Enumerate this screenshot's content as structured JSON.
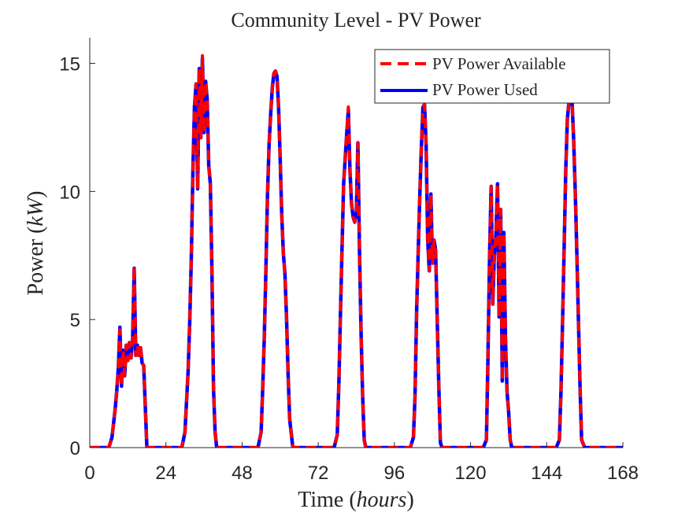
{
  "chart_data": {
    "type": "line",
    "title": "Community Level - PV Power",
    "xlabel_text": "Time ",
    "xlabel_unit": "hours",
    "ylabel_text": "Power ",
    "ylabel_unit": "kW",
    "xlim": [
      0,
      168
    ],
    "ylim": [
      0,
      16
    ],
    "xticks": [
      0,
      24,
      48,
      72,
      96,
      120,
      144,
      168
    ],
    "yticks": [
      0,
      5,
      10,
      15
    ],
    "grid": false,
    "legend_position": "top-right",
    "series": [
      {
        "name": "PV Power Available",
        "color": "#ff0000",
        "style": "dashed",
        "points": [
          [
            0,
            0
          ],
          [
            6,
            0
          ],
          [
            7,
            0.4
          ],
          [
            8,
            1.5
          ],
          [
            8.5,
            2.2
          ],
          [
            9,
            3.1
          ],
          [
            9.5,
            4.6
          ],
          [
            10,
            2.4
          ],
          [
            10.5,
            3.8
          ],
          [
            11,
            2.8
          ],
          [
            11.5,
            4.0
          ],
          [
            12,
            3.4
          ],
          [
            12.5,
            4.1
          ],
          [
            13,
            3.5
          ],
          [
            13.5,
            4.2
          ],
          [
            14,
            7.1
          ],
          [
            14.5,
            3.6
          ],
          [
            15,
            4.0
          ],
          [
            15.5,
            3.6
          ],
          [
            16,
            3.9
          ],
          [
            16.5,
            3.3
          ],
          [
            17,
            3.2
          ],
          [
            18,
            0
          ],
          [
            29,
            0
          ],
          [
            30,
            0.6
          ],
          [
            30.5,
            1.8
          ],
          [
            31,
            3.0
          ],
          [
            31.5,
            4.9
          ],
          [
            32,
            7.4
          ],
          [
            32.5,
            10.8
          ],
          [
            33,
            13.3
          ],
          [
            33.5,
            14.2
          ],
          [
            34,
            10.1
          ],
          [
            34.5,
            14.8
          ],
          [
            35,
            12.1
          ],
          [
            35.5,
            15.3
          ],
          [
            36,
            12.3
          ],
          [
            36.5,
            14.3
          ],
          [
            37,
            13.6
          ],
          [
            37.5,
            11.0
          ],
          [
            38,
            10.3
          ],
          [
            38.5,
            6.9
          ],
          [
            39,
            2.3
          ],
          [
            39.5,
            0.6
          ],
          [
            40,
            0
          ],
          [
            53,
            0
          ],
          [
            54,
            0.6
          ],
          [
            54.5,
            2.3
          ],
          [
            55,
            4.3
          ],
          [
            55.5,
            6.9
          ],
          [
            56,
            9.8
          ],
          [
            56.5,
            11.8
          ],
          [
            57,
            13.0
          ],
          [
            57.5,
            14.0
          ],
          [
            58,
            14.6
          ],
          [
            58.5,
            14.7
          ],
          [
            59,
            14.5
          ],
          [
            59.5,
            13.3
          ],
          [
            60,
            11.3
          ],
          [
            60.5,
            9.1
          ],
          [
            61,
            7.6
          ],
          [
            61.5,
            6.8
          ],
          [
            62,
            5.1
          ],
          [
            62.5,
            2.9
          ],
          [
            63,
            1.1
          ],
          [
            64,
            0
          ],
          [
            77,
            0
          ],
          [
            78,
            0.5
          ],
          [
            78.5,
            2.5
          ],
          [
            79,
            5.2
          ],
          [
            79.5,
            7.8
          ],
          [
            80,
            10.3
          ],
          [
            80.5,
            11.3
          ],
          [
            81,
            12.3
          ],
          [
            81.5,
            13.3
          ],
          [
            82,
            10.8
          ],
          [
            82.5,
            9.5
          ],
          [
            83,
            9.0
          ],
          [
            83.5,
            8.8
          ],
          [
            84,
            9.2
          ],
          [
            84.5,
            11.9
          ],
          [
            85,
            7.7
          ],
          [
            85.5,
            4.5
          ],
          [
            86,
            2.0
          ],
          [
            86.5,
            0.3
          ],
          [
            87,
            0
          ],
          [
            101,
            0
          ],
          [
            102,
            0.4
          ],
          [
            102.5,
            2.0
          ],
          [
            103,
            5.3
          ],
          [
            103.5,
            7.6
          ],
          [
            104,
            9.8
          ],
          [
            104.5,
            11.7
          ],
          [
            105,
            13.3
          ],
          [
            105.5,
            13.4
          ],
          [
            106,
            11.8
          ],
          [
            106.5,
            8.1
          ],
          [
            107,
            6.9
          ],
          [
            107.5,
            9.9
          ],
          [
            108,
            7.2
          ],
          [
            108.5,
            8.1
          ],
          [
            109,
            7.7
          ],
          [
            109.5,
            5.0
          ],
          [
            110,
            2.4
          ],
          [
            110.5,
            0.2
          ],
          [
            111,
            0
          ],
          [
            124,
            0
          ],
          [
            125,
            0.3
          ],
          [
            125.5,
            3.6
          ],
          [
            126,
            7.5
          ],
          [
            126.5,
            10.2
          ],
          [
            127,
            5.6
          ],
          [
            127.5,
            7.5
          ],
          [
            128,
            8.3
          ],
          [
            128.5,
            10.3
          ],
          [
            129,
            5.1
          ],
          [
            129.5,
            9.3
          ],
          [
            130,
            2.6
          ],
          [
            130.5,
            8.4
          ],
          [
            131,
            4.3
          ],
          [
            131.5,
            2.2
          ],
          [
            132,
            1.4
          ],
          [
            132.5,
            0.3
          ],
          [
            133,
            0
          ],
          [
            147,
            0
          ],
          [
            148,
            0.3
          ],
          [
            148.5,
            2.2
          ],
          [
            149,
            4.9
          ],
          [
            149.5,
            7.8
          ],
          [
            150,
            10.8
          ],
          [
            150.5,
            12.8
          ],
          [
            151,
            13.5
          ],
          [
            152,
            13.5
          ],
          [
            152.5,
            12.0
          ],
          [
            153,
            10.0
          ],
          [
            153.5,
            7.6
          ],
          [
            154,
            5.0
          ],
          [
            154.5,
            2.4
          ],
          [
            155,
            0.3
          ],
          [
            156,
            0
          ],
          [
            168,
            0
          ]
        ]
      },
      {
        "name": "PV Power Used",
        "color": "#0000ff",
        "style": "solid",
        "points": [
          [
            0,
            0
          ],
          [
            6,
            0
          ],
          [
            7,
            0.4
          ],
          [
            8,
            1.5
          ],
          [
            8.5,
            2.2
          ],
          [
            9,
            3.1
          ],
          [
            9.5,
            4.7
          ],
          [
            10,
            2.4
          ],
          [
            10.5,
            3.8
          ],
          [
            11,
            2.8
          ],
          [
            11.5,
            4.0
          ],
          [
            12,
            3.4
          ],
          [
            12.5,
            4.1
          ],
          [
            13,
            3.5
          ],
          [
            13.5,
            4.2
          ],
          [
            14,
            7.0
          ],
          [
            14.5,
            3.6
          ],
          [
            15,
            4.0
          ],
          [
            15.5,
            3.6
          ],
          [
            16,
            3.9
          ],
          [
            16.5,
            3.3
          ],
          [
            17,
            3.2
          ],
          [
            18,
            0
          ],
          [
            29,
            0
          ],
          [
            30,
            0.6
          ],
          [
            30.5,
            1.8
          ],
          [
            31,
            3.0
          ],
          [
            31.5,
            4.9
          ],
          [
            32,
            7.4
          ],
          [
            32.5,
            10.8
          ],
          [
            33,
            13.3
          ],
          [
            33.5,
            14.2
          ],
          [
            34,
            10.1
          ],
          [
            34.5,
            14.8
          ],
          [
            35,
            12.1
          ],
          [
            35.5,
            15.2
          ],
          [
            36,
            12.3
          ],
          [
            36.5,
            14.3
          ],
          [
            37,
            13.6
          ],
          [
            37.5,
            11.0
          ],
          [
            38,
            10.3
          ],
          [
            38.5,
            6.9
          ],
          [
            39,
            2.3
          ],
          [
            39.5,
            0.6
          ],
          [
            40,
            0
          ],
          [
            53,
            0
          ],
          [
            54,
            0.6
          ],
          [
            54.5,
            2.3
          ],
          [
            55,
            4.3
          ],
          [
            55.5,
            6.9
          ],
          [
            56,
            9.8
          ],
          [
            56.5,
            11.8
          ],
          [
            57,
            13.0
          ],
          [
            57.5,
            14.0
          ],
          [
            58,
            14.6
          ],
          [
            58.5,
            14.7
          ],
          [
            59,
            14.5
          ],
          [
            59.5,
            13.3
          ],
          [
            60,
            11.3
          ],
          [
            60.5,
            9.1
          ],
          [
            61,
            7.6
          ],
          [
            61.5,
            6.8
          ],
          [
            62,
            5.1
          ],
          [
            62.5,
            2.9
          ],
          [
            63,
            1.1
          ],
          [
            64,
            0
          ],
          [
            77,
            0
          ],
          [
            78,
            0.5
          ],
          [
            78.5,
            2.5
          ],
          [
            79,
            5.2
          ],
          [
            79.5,
            7.8
          ],
          [
            80,
            10.3
          ],
          [
            80.5,
            11.3
          ],
          [
            81,
            12.3
          ],
          [
            81.5,
            13.2
          ],
          [
            82,
            10.8
          ],
          [
            82.5,
            9.5
          ],
          [
            83,
            9.0
          ],
          [
            83.5,
            8.8
          ],
          [
            84,
            9.2
          ],
          [
            84.5,
            11.9
          ],
          [
            85,
            7.7
          ],
          [
            85.5,
            4.5
          ],
          [
            86,
            2.0
          ],
          [
            86.5,
            0.3
          ],
          [
            87,
            0
          ],
          [
            101,
            0
          ],
          [
            102,
            0.4
          ],
          [
            102.5,
            2.0
          ],
          [
            103,
            5.3
          ],
          [
            103.5,
            7.6
          ],
          [
            104,
            9.8
          ],
          [
            104.5,
            11.7
          ],
          [
            105,
            13.3
          ],
          [
            105.5,
            13.4
          ],
          [
            106,
            11.8
          ],
          [
            106.5,
            8.1
          ],
          [
            107,
            6.9
          ],
          [
            107.5,
            9.9
          ],
          [
            108,
            7.2
          ],
          [
            108.5,
            8.1
          ],
          [
            109,
            7.7
          ],
          [
            109.5,
            5.0
          ],
          [
            110,
            2.4
          ],
          [
            110.5,
            0.2
          ],
          [
            111,
            0
          ],
          [
            124,
            0
          ],
          [
            125,
            0.3
          ],
          [
            125.5,
            3.6
          ],
          [
            126,
            7.5
          ],
          [
            126.5,
            10.2
          ],
          [
            127,
            5.6
          ],
          [
            127.5,
            7.5
          ],
          [
            128,
            8.3
          ],
          [
            128.5,
            10.3
          ],
          [
            129,
            5.1
          ],
          [
            129.5,
            9.3
          ],
          [
            130,
            2.6
          ],
          [
            130.5,
            8.4
          ],
          [
            131,
            4.3
          ],
          [
            131.5,
            2.2
          ],
          [
            132,
            1.4
          ],
          [
            132.5,
            0.3
          ],
          [
            133,
            0
          ],
          [
            147,
            0
          ],
          [
            148,
            0.3
          ],
          [
            148.5,
            2.2
          ],
          [
            149,
            4.9
          ],
          [
            149.5,
            7.8
          ],
          [
            150,
            10.8
          ],
          [
            150.5,
            12.8
          ],
          [
            151,
            13.5
          ],
          [
            152,
            13.5
          ],
          [
            152.5,
            12.0
          ],
          [
            153,
            10.0
          ],
          [
            153.5,
            7.6
          ],
          [
            154,
            5.0
          ],
          [
            154.5,
            2.4
          ],
          [
            155,
            0.3
          ],
          [
            156,
            0
          ],
          [
            168,
            0
          ]
        ]
      }
    ]
  }
}
